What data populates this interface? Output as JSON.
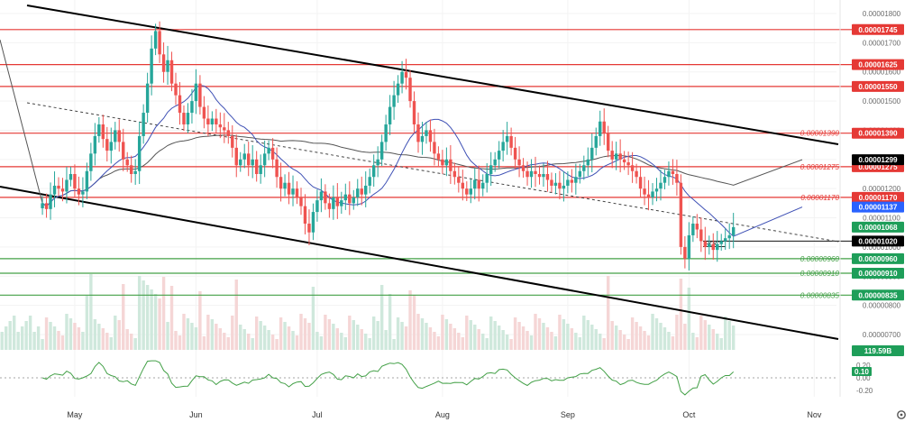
{
  "chart_data": {
    "type": "candlestick",
    "y_axis": {
      "ylim": [
        6.5e-06,
        1.815e-05
      ],
      "ticks": [
        "0.00001800",
        "0.00001700",
        "0.00001600",
        "0.00001500",
        "0.00001400",
        "0.00001300",
        "0.00001200",
        "0.00001100",
        "0.00001000",
        "0.00000900",
        "0.00000800",
        "0.00000700"
      ],
      "side": "right"
    },
    "x_axis": {
      "ticks": [
        {
          "label": "May",
          "index": 18
        },
        {
          "label": "Jun",
          "index": 48
        },
        {
          "label": "Jul",
          "index": 78
        },
        {
          "label": "Aug",
          "index": 109
        },
        {
          "label": "Sep",
          "index": 140
        },
        {
          "label": "Oct",
          "index": 170
        },
        {
          "label": "Nov",
          "index": 201
        }
      ],
      "n_slots": 207
    },
    "price_series": [
      1.15e-05,
      1.13e-05,
      1.18e-05,
      1.21e-05,
      1.2e-05,
      1.19e-05,
      1.23e-05,
      1.25e-05,
      1.2e-05,
      1.18e-05,
      1.19e-05,
      1.26e-05,
      1.32e-05,
      1.38e-05,
      1.42e-05,
      1.37e-05,
      1.33e-05,
      1.36e-05,
      1.4e-05,
      1.36e-05,
      1.3e-05,
      1.28e-05,
      1.25e-05,
      1.26e-05,
      1.38e-05,
      1.46e-05,
      1.56e-05,
      1.68e-05,
      1.74e-05,
      1.66e-05,
      1.6e-05,
      1.64e-05,
      1.56e-05,
      1.52e-05,
      1.46e-05,
      1.42e-05,
      1.46e-05,
      1.5e-05,
      1.56e-05,
      1.48e-05,
      1.44e-05,
      1.42e-05,
      1.44e-05,
      1.42e-05,
      1.41e-05,
      1.4e-05,
      1.38e-05,
      1.34e-05,
      1.28e-05,
      1.3e-05,
      1.32e-05,
      1.28e-05,
      1.3e-05,
      1.25e-05,
      1.28e-05,
      1.32e-05,
      1.34e-05,
      1.3e-05,
      1.24e-05,
      1.2e-05,
      1.22e-05,
      1.18e-05,
      1.2e-05,
      1.17e-05,
      1.14e-05,
      1.08e-05,
      1.05e-05,
      1.12e-05,
      1.16e-05,
      1.19e-05,
      1.15e-05,
      1.13e-05,
      1.17e-05,
      1.14e-05,
      1.16e-05,
      1.18e-05,
      1.15e-05,
      1.17e-05,
      1.2e-05,
      1.18e-05,
      1.21e-05,
      1.24e-05,
      1.28e-05,
      1.3e-05,
      1.36e-05,
      1.42e-05,
      1.48e-05,
      1.52e-05,
      1.56e-05,
      1.6e-05,
      1.58e-05,
      1.5e-05,
      1.42e-05,
      1.36e-05,
      1.38e-05,
      1.4e-05,
      1.36e-05,
      1.32e-05,
      1.3e-05,
      1.28e-05,
      1.3e-05,
      1.26e-05,
      1.24e-05,
      1.22e-05,
      1.2e-05,
      1.18e-05,
      1.2e-05,
      1.23e-05,
      1.2e-05,
      1.22e-05,
      1.25e-05,
      1.28e-05,
      1.3e-05,
      1.33e-05,
      1.36e-05,
      1.38e-05,
      1.34e-05,
      1.3e-05,
      1.28e-05,
      1.26e-05,
      1.24e-05,
      1.26e-05,
      1.25e-05,
      1.24e-05,
      1.25e-05,
      1.23e-05,
      1.21e-05,
      1.22e-05,
      1.2e-05,
      1.21e-05,
      1.23e-05,
      1.22e-05,
      1.24e-05,
      1.26e-05,
      1.28e-05,
      1.3e-05,
      1.34e-05,
      1.38e-05,
      1.43e-05,
      1.39e-05,
      1.33e-05,
      1.3e-05,
      1.32e-05,
      1.3e-05,
      1.29e-05,
      1.28e-05,
      1.26e-05,
      1.24e-05,
      1.2e-05,
      1.18e-05,
      1.17e-05,
      1.19e-05,
      1.2e-05,
      1.22e-05,
      1.24e-05,
      1.26e-05,
      1.25e-05,
      1.22e-05,
      1e-05,
      9.6e-06,
      1.04e-05,
      1.08e-05,
      1.06e-05,
      1.02e-05,
      1e-05,
      1.01e-05,
      9.9e-06,
      1.01e-05,
      1.02e-05,
      1.03e-05,
      1.04e-05,
      1.068e-05
    ],
    "indicators": {
      "ma_black_label": "0.00001299",
      "ma_blue_label": "0.00001137",
      "rsi_value_label": "0.10",
      "rsi_upper_label": "0.20",
      "volume_label": "119.59B"
    },
    "levels": [
      {
        "value": 1.745e-05,
        "label": "0.00001745",
        "show_left_text": false,
        "color": "#e53935"
      },
      {
        "value": 1.625e-05,
        "label": "0.00001625",
        "show_left_text": false,
        "color": "#e53935"
      },
      {
        "value": 1.55e-05,
        "label": "0.00001550",
        "show_left_text": false,
        "color": "#e53935"
      },
      {
        "value": 1.39e-05,
        "label": "0.00001390",
        "show_left_text": true,
        "color": "#e53935"
      },
      {
        "value": 1.275e-05,
        "label": "0.00001275",
        "show_left_text": true,
        "color": "#e53935"
      },
      {
        "value": 1.17e-05,
        "label": "0.00001170",
        "show_left_text": true,
        "color": "#e53935"
      },
      {
        "value": 9.6e-06,
        "label": "0.00000960",
        "show_left_text": true,
        "color": "#43a047"
      },
      {
        "value": 9.1e-06,
        "label": "0.00000910",
        "show_left_text": true,
        "color": "#43a047"
      },
      {
        "value": 8.35e-06,
        "label": "0.00000835",
        "show_left_text": true,
        "color": "#43a047"
      }
    ],
    "poc": {
      "value": 1.02e-05,
      "label": "0.00001020",
      "text": "POC"
    },
    "current_price": {
      "value": 1.068e-05,
      "label": "0.00001068"
    },
    "rsi_axis": {
      "ticks": [
        "0.20",
        "0.00",
        "-0.20"
      ]
    }
  },
  "colors": {
    "up": "#26a69a",
    "down": "#ef5350",
    "resistance": "#e53935",
    "support": "#43a047",
    "channel": "#000000",
    "ma_long": "#555555",
    "ma_short": "#3f51b5",
    "badge_black": "#000000",
    "badge_blue": "#2962ff",
    "badge_green": "#1e9e59",
    "vol_up": "#cfe8dc",
    "vol_down": "#f5d6d6",
    "rsi_line": "#43a047"
  },
  "ui": {
    "settings_icon": "gear-icon"
  }
}
